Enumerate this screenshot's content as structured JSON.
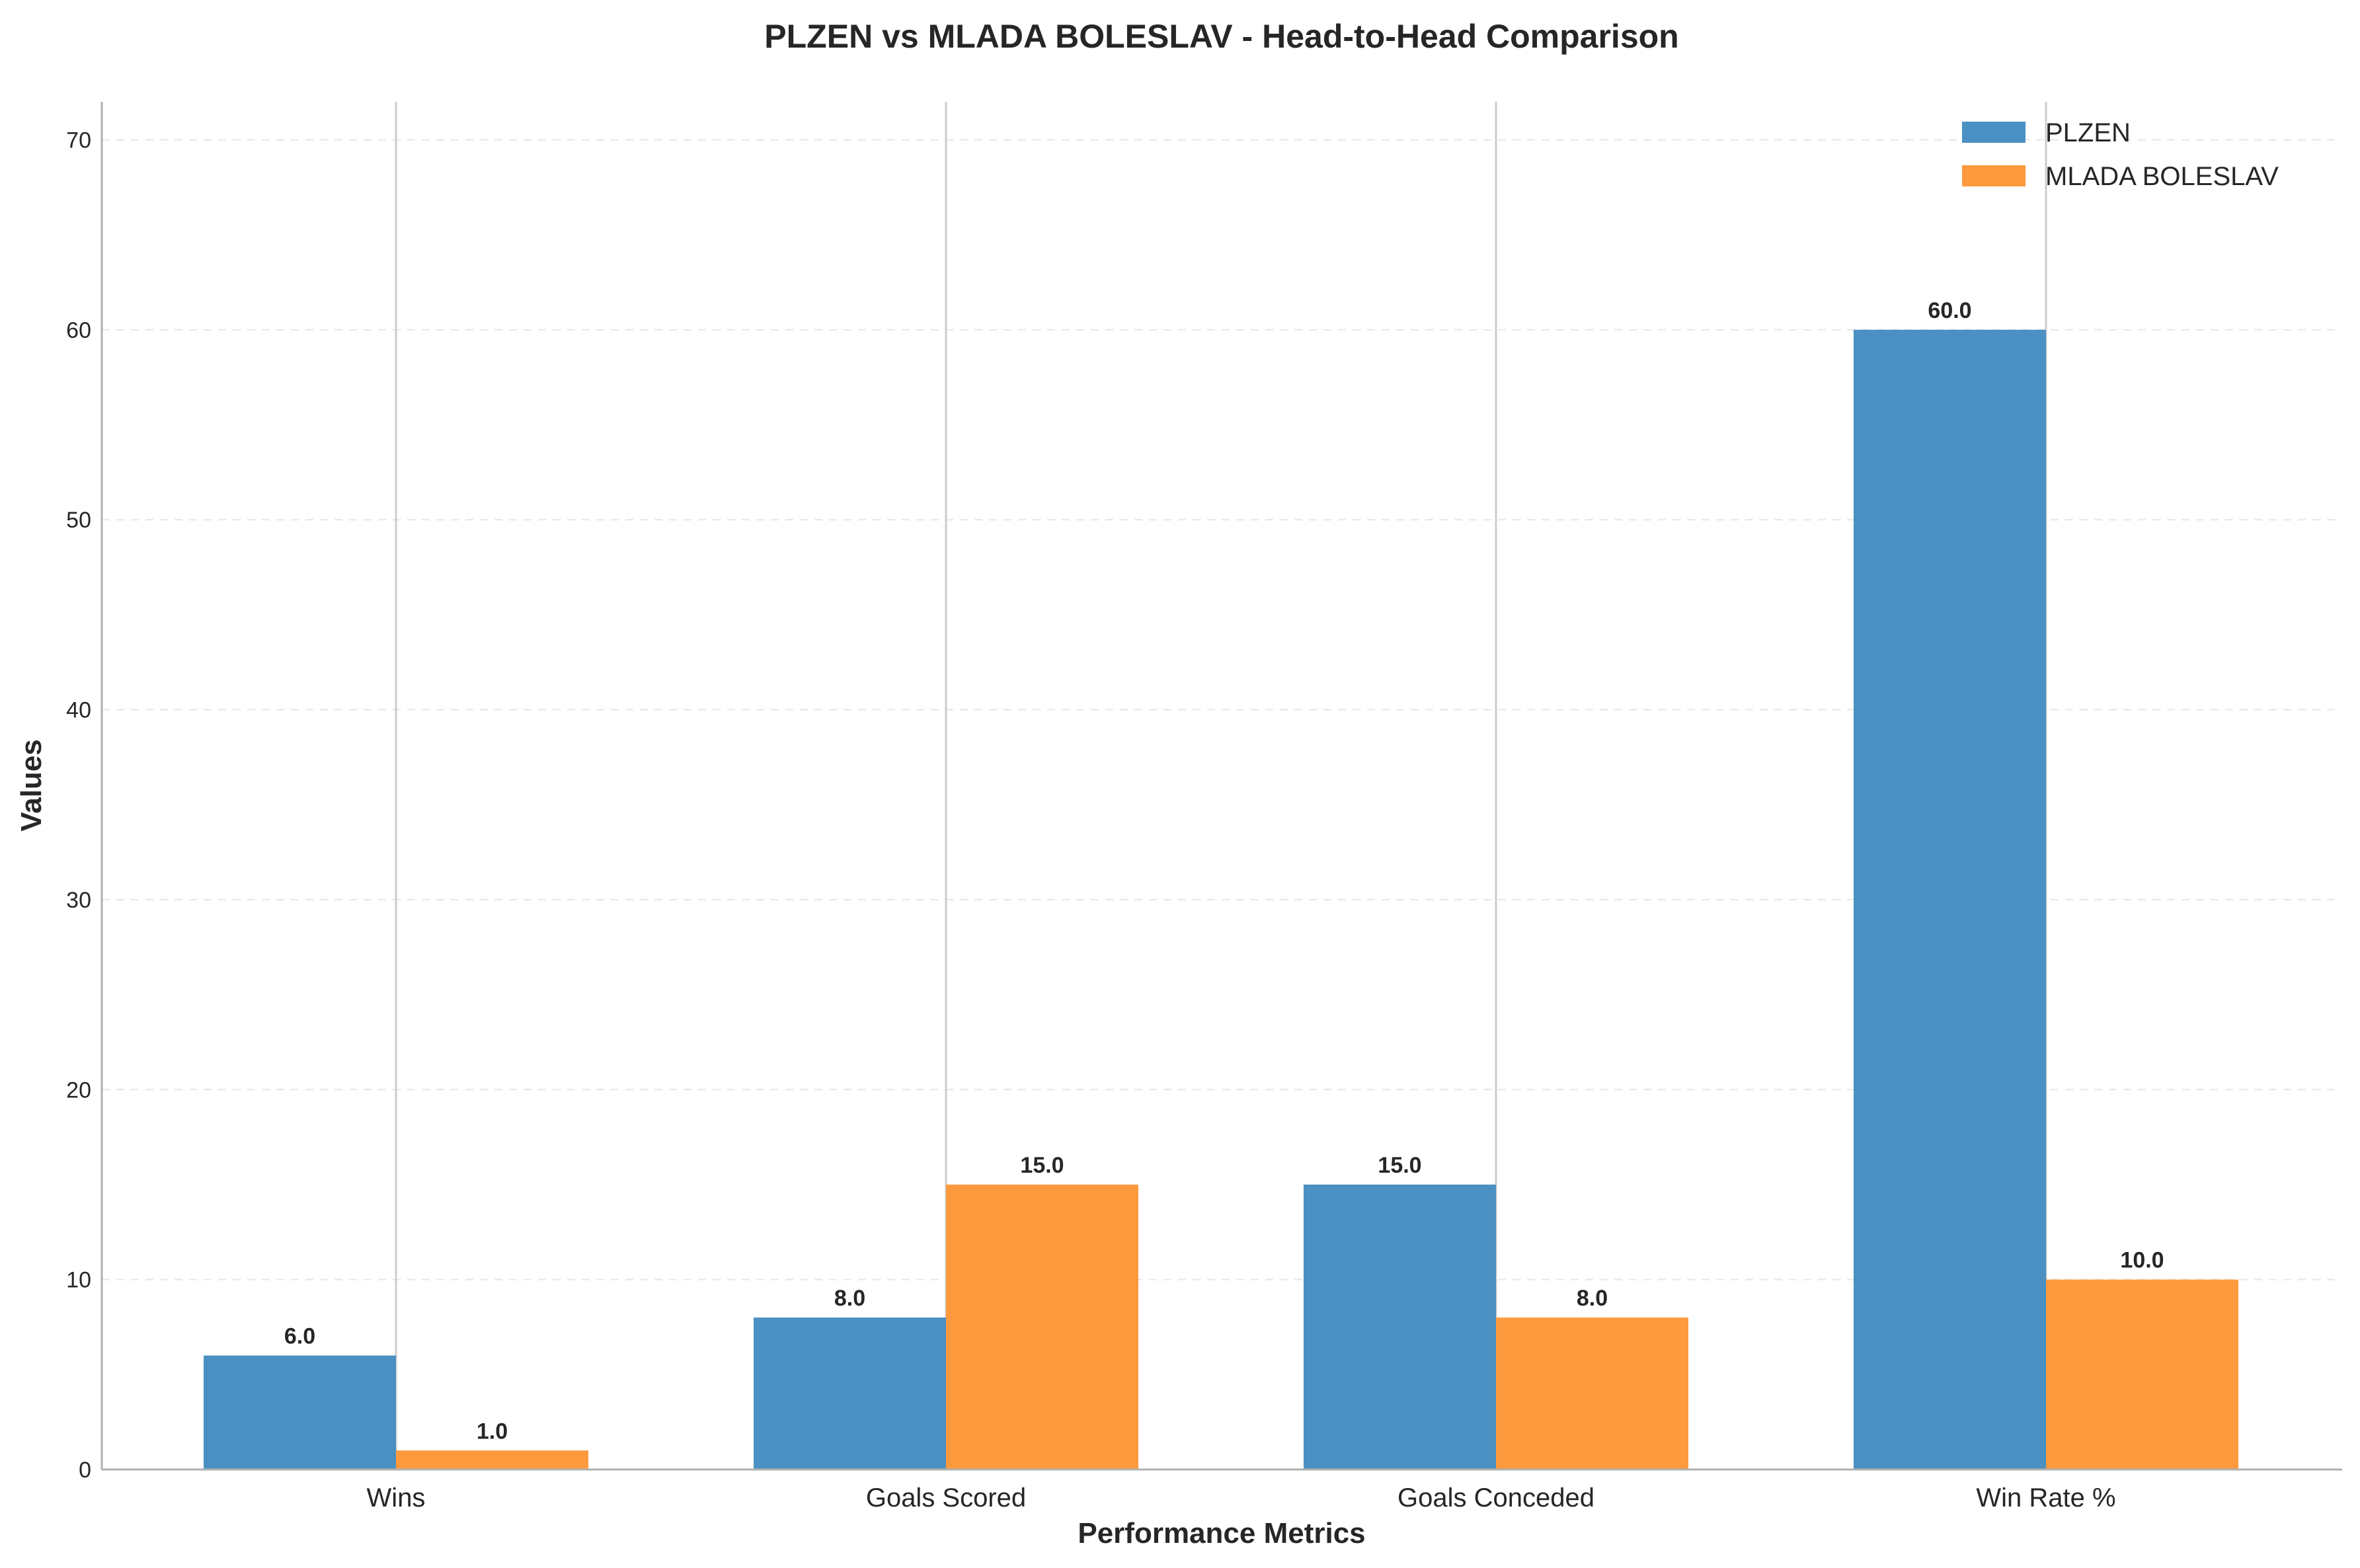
{
  "chart_data": {
    "type": "bar",
    "title": "PLZEN vs MLADA BOLESLAV - Head-to-Head Comparison",
    "xlabel": "Performance Metrics",
    "ylabel": "Values",
    "categories": [
      "Wins",
      "Goals Scored",
      "Goals Conceded",
      "Win Rate %"
    ],
    "series": [
      {
        "name": "PLZEN",
        "color": "#4a90c2",
        "values": [
          6.0,
          8.0,
          15.0,
          60.0
        ]
      },
      {
        "name": "MLADA BOLESLAV",
        "color": "#fd9a3e",
        "values": [
          1.0,
          15.0,
          8.0,
          10.0
        ]
      }
    ],
    "ylim": [
      0,
      72
    ],
    "yticks": [
      0,
      10,
      20,
      30,
      40,
      50,
      60,
      70
    ],
    "grid": {
      "y": true,
      "style": "dashed"
    },
    "legend_position": "top-right",
    "value_label_format": "one-decimal"
  }
}
